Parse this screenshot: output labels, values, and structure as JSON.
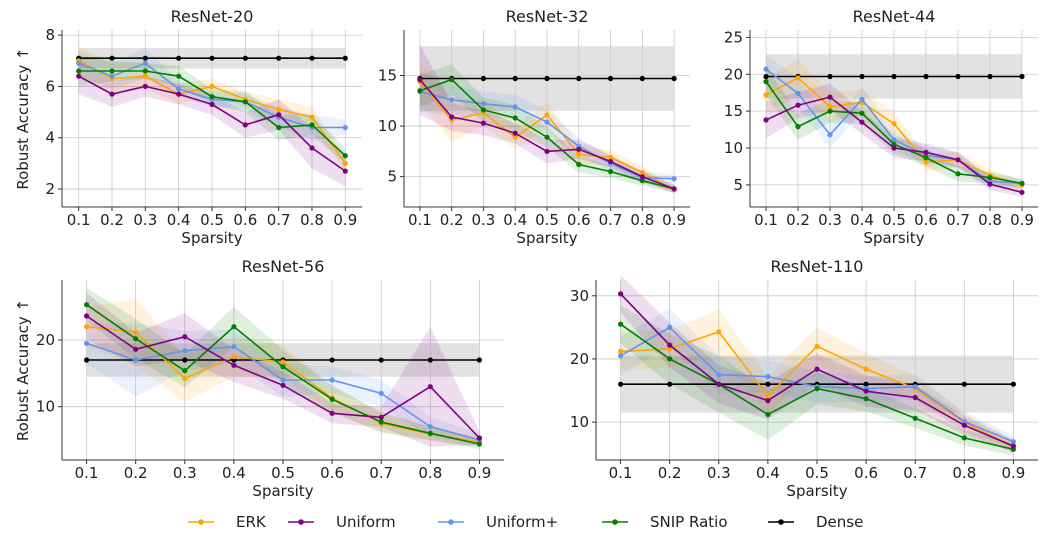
{
  "figure": {
    "ylabel": "Robust Accuracy ↑"
  },
  "colors": {
    "ERK": "#ffa500",
    "Uniform": "#800080",
    "Uniform+": "#6495ed",
    "SNIP Ratio": "#008000",
    "Dense": "#000000",
    "band_dense": "#cfcfcf",
    "grid": "#c8c8c8"
  },
  "legend": {
    "position": "bottom-center",
    "items": [
      "ERK",
      "Uniform",
      "Uniform+",
      "SNIP Ratio",
      "Dense"
    ]
  },
  "chart_data": [
    {
      "type": "line",
      "title": "ResNet-20",
      "xlabel": "Sparsity",
      "ylabel": "Robust Accuracy ↑",
      "x": [
        0.1,
        0.2,
        0.3,
        0.4,
        0.5,
        0.6,
        0.7,
        0.8,
        0.9
      ],
      "xlim": [
        0.05,
        0.95
      ],
      "ylim": [
        1.3,
        8.2
      ],
      "yticks": [
        2,
        4,
        6,
        8
      ],
      "grid": true,
      "series": [
        {
          "name": "ERK",
          "values": [
            7.0,
            6.3,
            6.4,
            5.7,
            6.0,
            5.5,
            5.1,
            4.8,
            3.0
          ],
          "band": [
            0.6,
            0.6,
            0.5,
            0.4,
            0.3,
            0.3,
            0.4,
            0.4,
            0.3
          ]
        },
        {
          "name": "Uniform",
          "values": [
            6.4,
            5.7,
            6.0,
            5.7,
            5.3,
            4.5,
            4.9,
            3.6,
            2.7
          ],
          "band": [
            0.7,
            0.5,
            0.4,
            0.4,
            0.4,
            0.5,
            0.6,
            0.8,
            0.6
          ]
        },
        {
          "name": "Uniform+",
          "values": [
            6.9,
            6.4,
            6.9,
            5.9,
            5.5,
            5.4,
            4.8,
            4.4,
            4.4
          ],
          "band": [
            0.5,
            0.5,
            0.6,
            0.3,
            0.3,
            0.3,
            0.4,
            0.5,
            0.3
          ]
        },
        {
          "name": "SNIP Ratio",
          "values": [
            6.6,
            6.6,
            6.6,
            6.4,
            5.6,
            5.4,
            4.4,
            4.5,
            3.3
          ],
          "band": [
            0.6,
            0.4,
            0.3,
            0.4,
            0.3,
            0.4,
            0.5,
            0.4,
            0.3
          ]
        },
        {
          "name": "Dense",
          "values": [
            7.1,
            7.1,
            7.1,
            7.1,
            7.1,
            7.1,
            7.1,
            7.1,
            7.1
          ],
          "band": [
            0.4,
            0.4,
            0.4,
            0.4,
            0.4,
            0.4,
            0.4,
            0.4,
            0.4
          ]
        }
      ]
    },
    {
      "type": "line",
      "title": "ResNet-32",
      "xlabel": "Sparsity",
      "ylabel": "",
      "x": [
        0.1,
        0.2,
        0.3,
        0.4,
        0.5,
        0.6,
        0.7,
        0.8,
        0.9
      ],
      "xlim": [
        0.05,
        0.95
      ],
      "ylim": [
        2.0,
        19.5
      ],
      "yticks": [
        5,
        10,
        15
      ],
      "grid": true,
      "series": [
        {
          "name": "ERK",
          "values": [
            14.4,
            10.6,
            11.3,
            8.9,
            11.1,
            7.2,
            6.9,
            5.4,
            3.7
          ],
          "band": [
            2.0,
            2.2,
            1.3,
            1.2,
            1.3,
            1.0,
            0.7,
            0.6,
            0.4
          ]
        },
        {
          "name": "Uniform",
          "values": [
            14.6,
            10.9,
            10.3,
            9.3,
            7.5,
            7.7,
            6.5,
            5.0,
            3.8
          ],
          "band": [
            3.5,
            1.4,
            1.2,
            1.0,
            1.2,
            0.9,
            0.6,
            0.6,
            0.4
          ]
        },
        {
          "name": "Uniform+",
          "values": [
            13.4,
            12.6,
            12.2,
            11.9,
            10.4,
            8.0,
            6.3,
            4.9,
            4.8
          ],
          "band": [
            2.0,
            1.5,
            1.2,
            1.2,
            1.2,
            0.8,
            0.8,
            0.6,
            0.4
          ]
        },
        {
          "name": "SNIP Ratio",
          "values": [
            13.5,
            14.6,
            11.6,
            10.8,
            8.9,
            6.2,
            5.5,
            4.6,
            3.8
          ],
          "band": [
            1.6,
            1.5,
            1.2,
            1.3,
            1.0,
            0.8,
            0.6,
            0.5,
            0.4
          ]
        },
        {
          "name": "Dense",
          "values": [
            14.7,
            14.7,
            14.7,
            14.7,
            14.7,
            14.7,
            14.7,
            14.7,
            14.7
          ],
          "band": [
            3.2,
            3.2,
            3.2,
            3.2,
            3.2,
            3.2,
            3.2,
            3.2,
            3.2
          ]
        }
      ]
    },
    {
      "type": "line",
      "title": "ResNet-44",
      "xlabel": "Sparsity",
      "ylabel": "",
      "x": [
        0.1,
        0.2,
        0.3,
        0.4,
        0.5,
        0.6,
        0.7,
        0.8,
        0.9
      ],
      "xlim": [
        0.05,
        0.95
      ],
      "ylim": [
        2.0,
        26.0
      ],
      "yticks": [
        5,
        10,
        15,
        20,
        25
      ],
      "grid": true,
      "series": [
        {
          "name": "ERK",
          "values": [
            17.2,
            19.5,
            15.6,
            16.2,
            13.3,
            8.1,
            8.4,
            6.3,
            5.0
          ],
          "band": [
            2.5,
            2.5,
            2.0,
            1.8,
            1.5,
            1.2,
            1.0,
            0.8,
            0.6
          ]
        },
        {
          "name": "Uniform",
          "values": [
            13.8,
            15.8,
            16.9,
            13.5,
            10.0,
            9.4,
            8.4,
            5.1,
            4.0
          ],
          "band": [
            2.5,
            1.8,
            1.8,
            1.6,
            1.3,
            1.2,
            1.0,
            0.8,
            0.6
          ]
        },
        {
          "name": "Uniform+",
          "values": [
            20.7,
            17.4,
            11.8,
            16.6,
            11.1,
            9.0,
            8.4,
            5.5,
            5.2
          ],
          "band": [
            2.0,
            2.0,
            1.8,
            1.6,
            1.3,
            1.2,
            1.0,
            0.8,
            0.6
          ]
        },
        {
          "name": "SNIP Ratio",
          "values": [
            19.0,
            12.9,
            15.0,
            14.7,
            10.5,
            8.7,
            6.5,
            6.0,
            5.2
          ],
          "band": [
            2.0,
            1.8,
            1.6,
            1.4,
            1.3,
            1.2,
            1.0,
            0.8,
            0.6
          ]
        },
        {
          "name": "Dense",
          "values": [
            19.7,
            19.7,
            19.7,
            19.7,
            19.7,
            19.7,
            19.7,
            19.7,
            19.7
          ],
          "band": [
            3.0,
            3.0,
            3.0,
            3.0,
            3.0,
            3.0,
            3.0,
            3.0,
            3.0
          ]
        }
      ]
    },
    {
      "type": "line",
      "title": "ResNet-56",
      "xlabel": "Sparsity",
      "ylabel": "Robust Accuracy ↑",
      "x": [
        0.1,
        0.2,
        0.3,
        0.4,
        0.5,
        0.6,
        0.7,
        0.8,
        0.9
      ],
      "xlim": [
        0.05,
        0.95
      ],
      "ylim": [
        2.0,
        29.0
      ],
      "yticks": [
        10,
        20
      ],
      "grid": true,
      "series": [
        {
          "name": "ERK",
          "values": [
            22.0,
            21.2,
            14.2,
            17.5,
            16.7,
            11.3,
            7.5,
            5.9,
            4.7
          ],
          "band": [
            3.0,
            5.0,
            3.5,
            3.0,
            2.5,
            2.0,
            1.5,
            1.0,
            0.8
          ]
        },
        {
          "name": "Uniform",
          "values": [
            23.6,
            18.6,
            20.5,
            16.2,
            13.2,
            9.0,
            8.4,
            13.0,
            5.3
          ],
          "band": [
            3.5,
            2.5,
            3.5,
            2.5,
            2.0,
            1.5,
            1.5,
            9.0,
            1.0
          ]
        },
        {
          "name": "Uniform+",
          "values": [
            19.5,
            17.0,
            18.4,
            19.0,
            14.0,
            14.0,
            12.0,
            7.0,
            5.0
          ],
          "band": [
            3.0,
            5.5,
            3.0,
            2.5,
            2.5,
            2.0,
            2.0,
            1.5,
            1.0
          ]
        },
        {
          "name": "SNIP Ratio",
          "values": [
            25.3,
            20.2,
            15.4,
            22.0,
            16.0,
            11.1,
            7.7,
            6.0,
            4.4
          ],
          "band": [
            2.5,
            3.0,
            2.5,
            3.0,
            2.5,
            2.0,
            1.5,
            1.0,
            0.8
          ]
        },
        {
          "name": "Dense",
          "values": [
            17.0,
            17.0,
            17.0,
            17.0,
            17.0,
            17.0,
            17.0,
            17.0,
            17.0
          ],
          "band": [
            2.5,
            2.5,
            2.5,
            2.5,
            2.5,
            2.5,
            2.5,
            2.5,
            2.5
          ]
        }
      ]
    },
    {
      "type": "line",
      "title": "ResNet-110",
      "xlabel": "Sparsity",
      "ylabel": "",
      "x": [
        0.1,
        0.2,
        0.3,
        0.4,
        0.5,
        0.6,
        0.7,
        0.8,
        0.9
      ],
      "xlim": [
        0.05,
        0.95
      ],
      "ylim": [
        4.0,
        32.5
      ],
      "yticks": [
        10,
        20,
        30
      ],
      "grid": true,
      "series": [
        {
          "name": "ERK",
          "values": [
            21.2,
            21.6,
            24.3,
            14.1,
            22.0,
            18.4,
            15.3,
            9.9,
            6.2
          ],
          "band": [
            3.0,
            3.0,
            3.5,
            3.0,
            3.0,
            2.5,
            2.0,
            1.5,
            1.0
          ]
        },
        {
          "name": "Uniform",
          "values": [
            30.3,
            22.2,
            16.0,
            13.4,
            18.4,
            14.9,
            13.9,
            9.5,
            6.2
          ],
          "band": [
            3.0,
            3.5,
            3.0,
            3.0,
            2.5,
            2.5,
            2.0,
            1.5,
            1.0
          ]
        },
        {
          "name": "Uniform+",
          "values": [
            20.5,
            25.0,
            17.5,
            17.2,
            15.6,
            15.3,
            15.6,
            10.1,
            6.9
          ],
          "band": [
            3.0,
            3.0,
            3.0,
            2.5,
            2.5,
            2.0,
            2.0,
            1.5,
            1.0
          ]
        },
        {
          "name": "SNIP Ratio",
          "values": [
            25.5,
            20.0,
            16.0,
            11.2,
            15.3,
            13.7,
            10.6,
            7.5,
            5.7
          ],
          "band": [
            3.0,
            4.0,
            4.5,
            4.0,
            2.5,
            2.0,
            1.5,
            1.2,
            1.0
          ]
        },
        {
          "name": "Dense",
          "values": [
            16.0,
            16.0,
            16.0,
            16.0,
            16.0,
            16.0,
            16.0,
            16.0,
            16.0
          ],
          "band": [
            4.5,
            4.5,
            4.5,
            4.5,
            4.5,
            4.5,
            4.5,
            4.5,
            4.5
          ]
        }
      ]
    }
  ]
}
